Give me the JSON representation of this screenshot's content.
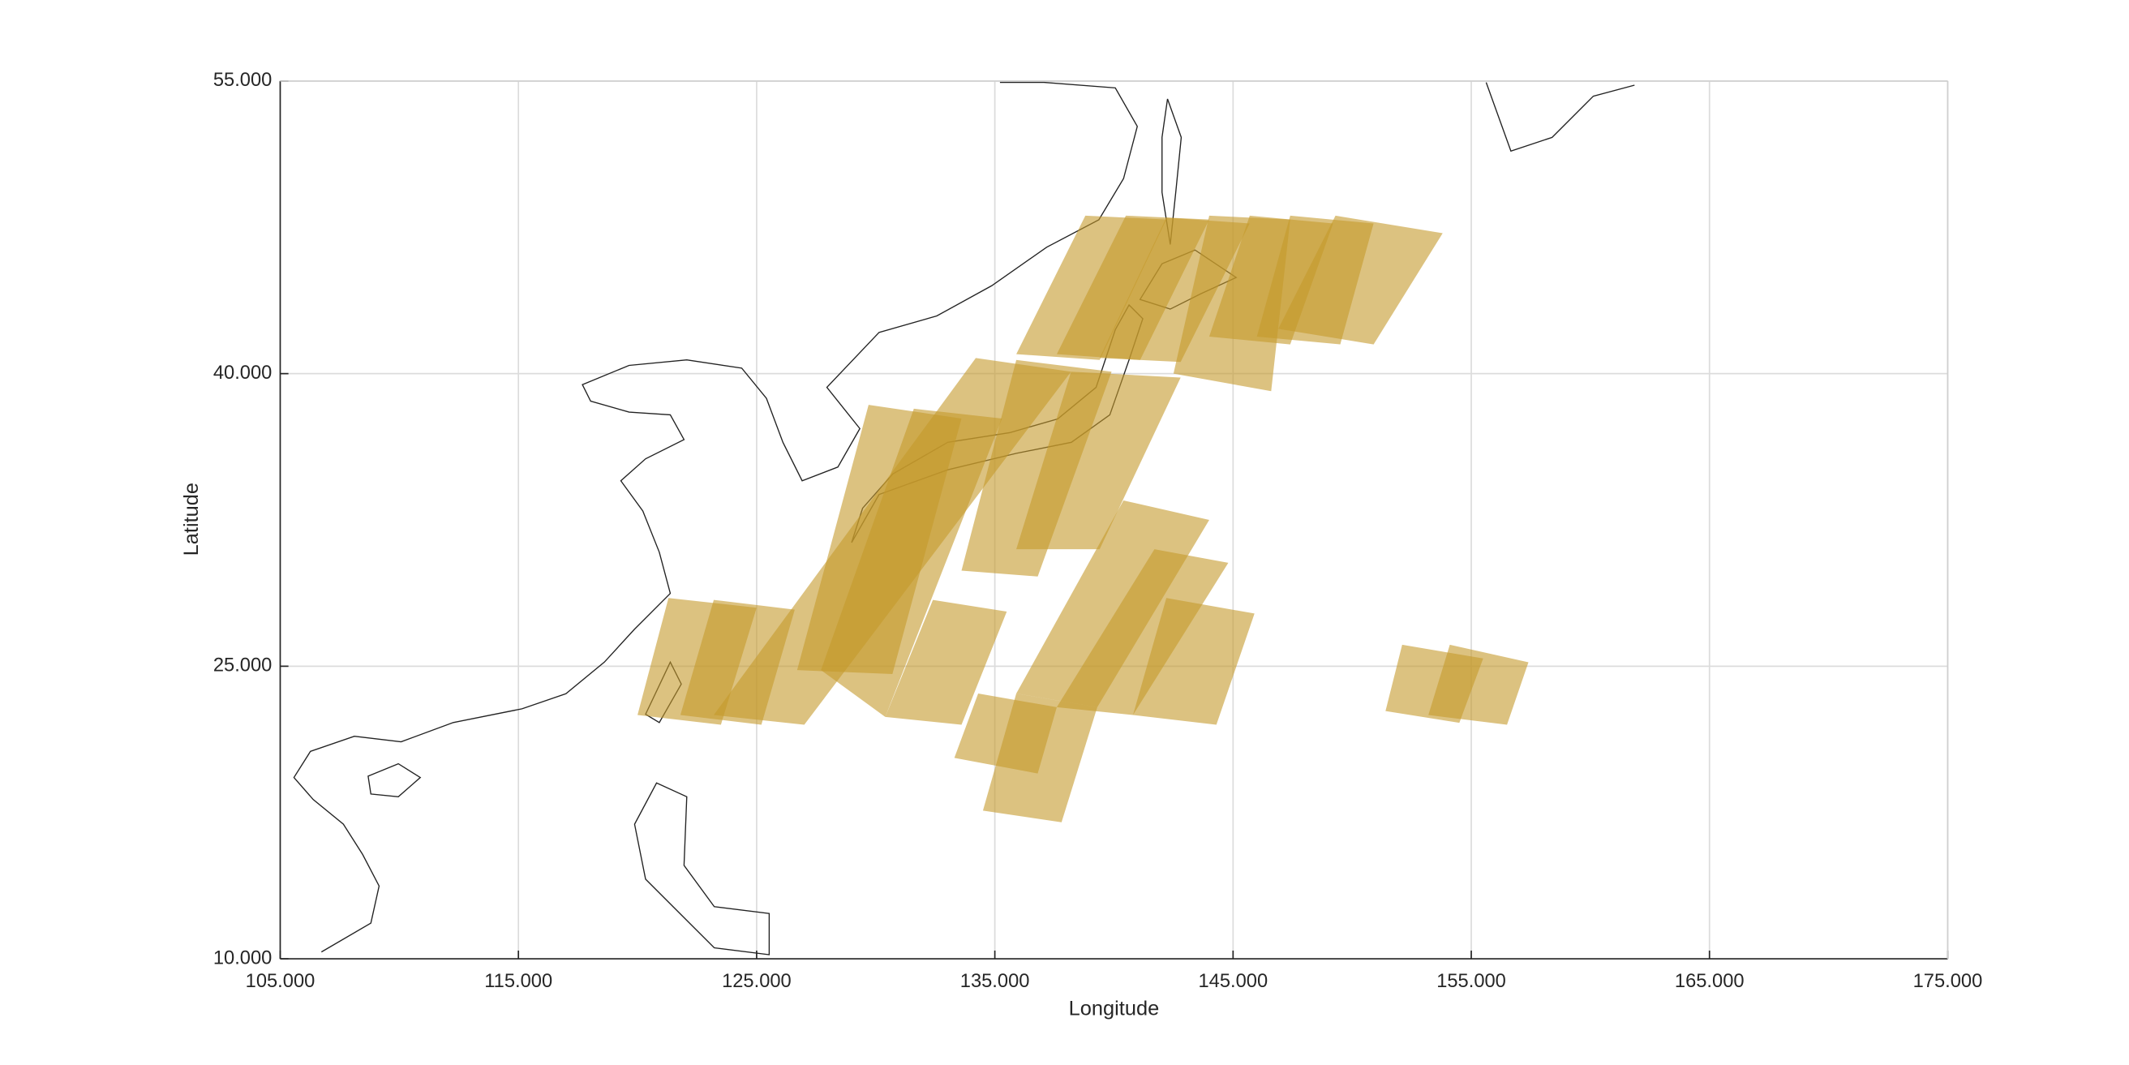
{
  "chart_data": {
    "type": "map",
    "xlabel": "Longitude",
    "ylabel": "Latitude",
    "xlim": [
      105,
      175
    ],
    "ylim": [
      10,
      55
    ],
    "xticks": [
      {
        "value": 105,
        "label": "105.000"
      },
      {
        "value": 115,
        "label": "115.000"
      },
      {
        "value": 125,
        "label": "125.000"
      },
      {
        "value": 135,
        "label": "135.000"
      },
      {
        "value": 145,
        "label": "145.000"
      },
      {
        "value": 155,
        "label": "155.000"
      },
      {
        "value": 165,
        "label": "165.000"
      },
      {
        "value": 175,
        "label": "175.000"
      }
    ],
    "yticks": [
      {
        "value": 10,
        "label": "10.000"
      },
      {
        "value": 25,
        "label": "25.000"
      },
      {
        "value": 40,
        "label": "40.000"
      },
      {
        "value": 55,
        "label": "55.000"
      }
    ],
    "grid": true,
    "color": "#c49a2c",
    "polygons": [
      {
        "lon": [
          138.8,
          142.2,
          139.4,
          135.9
        ],
        "lat": [
          48.1,
          47.9,
          40.7,
          41.0
        ]
      },
      {
        "lon": [
          140.5,
          144.0,
          141.1,
          137.6
        ],
        "lat": [
          48.1,
          47.9,
          40.7,
          41.0
        ]
      },
      {
        "lon": [
          142.2,
          145.7,
          142.8,
          139.4
        ],
        "lat": [
          48.0,
          47.7,
          40.6,
          40.8
        ]
      },
      {
        "lon": [
          144.0,
          147.4,
          146.6,
          142.5
        ],
        "lat": [
          48.1,
          47.9,
          39.1,
          40.0
        ]
      },
      {
        "lon": [
          145.7,
          149.2,
          147.4,
          144.0
        ],
        "lat": [
          48.1,
          47.7,
          41.5,
          41.9
        ]
      },
      {
        "lon": [
          147.4,
          150.9,
          149.5,
          146.0
        ],
        "lat": [
          48.1,
          47.7,
          41.5,
          41.9
        ]
      },
      {
        "lon": [
          149.3,
          153.8,
          150.9,
          146.9
        ],
        "lat": [
          48.1,
          47.2,
          41.5,
          42.3
        ]
      },
      {
        "lon": [
          134.2,
          138.2,
          127.0,
          123.2
        ],
        "lat": [
          40.8,
          40.1,
          22.0,
          22.5
        ]
      },
      {
        "lon": [
          129.7,
          133.6,
          130.7,
          126.7
        ],
        "lat": [
          38.4,
          37.7,
          24.6,
          24.8
        ]
      },
      {
        "lon": [
          131.6,
          135.3,
          130.4,
          127.7
        ],
        "lat": [
          38.2,
          37.7,
          22.4,
          24.8
        ]
      },
      {
        "lon": [
          135.9,
          139.9,
          136.8,
          133.6
        ],
        "lat": [
          40.7,
          40.1,
          29.6,
          29.9
        ]
      },
      {
        "lon": [
          138.2,
          142.8,
          139.4,
          135.9
        ],
        "lat": [
          40.1,
          39.8,
          31.0,
          31.0
        ]
      },
      {
        "lon": [
          140.4,
          144.0,
          139.3,
          135.9
        ],
        "lat": [
          33.5,
          32.5,
          22.9,
          23.6
        ]
      },
      {
        "lon": [
          141.7,
          144.8,
          140.8,
          137.6
        ],
        "lat": [
          31.0,
          30.3,
          22.5,
          22.9
        ]
      },
      {
        "lon": [
          142.2,
          145.9,
          144.3,
          140.8
        ],
        "lat": [
          28.5,
          27.7,
          22.0,
          22.5
        ]
      },
      {
        "lon": [
          121.3,
          125.0,
          123.5,
          120.0
        ],
        "lat": [
          28.5,
          28.0,
          22.0,
          22.5
        ]
      },
      {
        "lon": [
          123.2,
          126.6,
          125.2,
          121.8
        ],
        "lat": [
          28.4,
          27.9,
          22.0,
          22.5
        ]
      },
      {
        "lon": [
          132.4,
          135.5,
          133.6,
          130.4
        ],
        "lat": [
          28.4,
          27.8,
          22.0,
          22.4
        ]
      },
      {
        "lon": [
          134.3,
          137.6,
          136.8,
          133.3
        ],
        "lat": [
          23.6,
          22.9,
          19.5,
          20.3
        ]
      },
      {
        "lon": [
          135.9,
          139.3,
          137.8,
          134.5
        ],
        "lat": [
          23.6,
          22.9,
          17.0,
          17.6
        ]
      },
      {
        "lon": [
          152.1,
          155.5,
          154.5,
          151.4
        ],
        "lat": [
          26.1,
          25.4,
          22.1,
          22.7
        ]
      },
      {
        "lon": [
          154.1,
          157.4,
          156.5,
          153.2
        ],
        "lat": [
          26.1,
          25.2,
          22.0,
          22.5
        ]
      }
    ]
  }
}
